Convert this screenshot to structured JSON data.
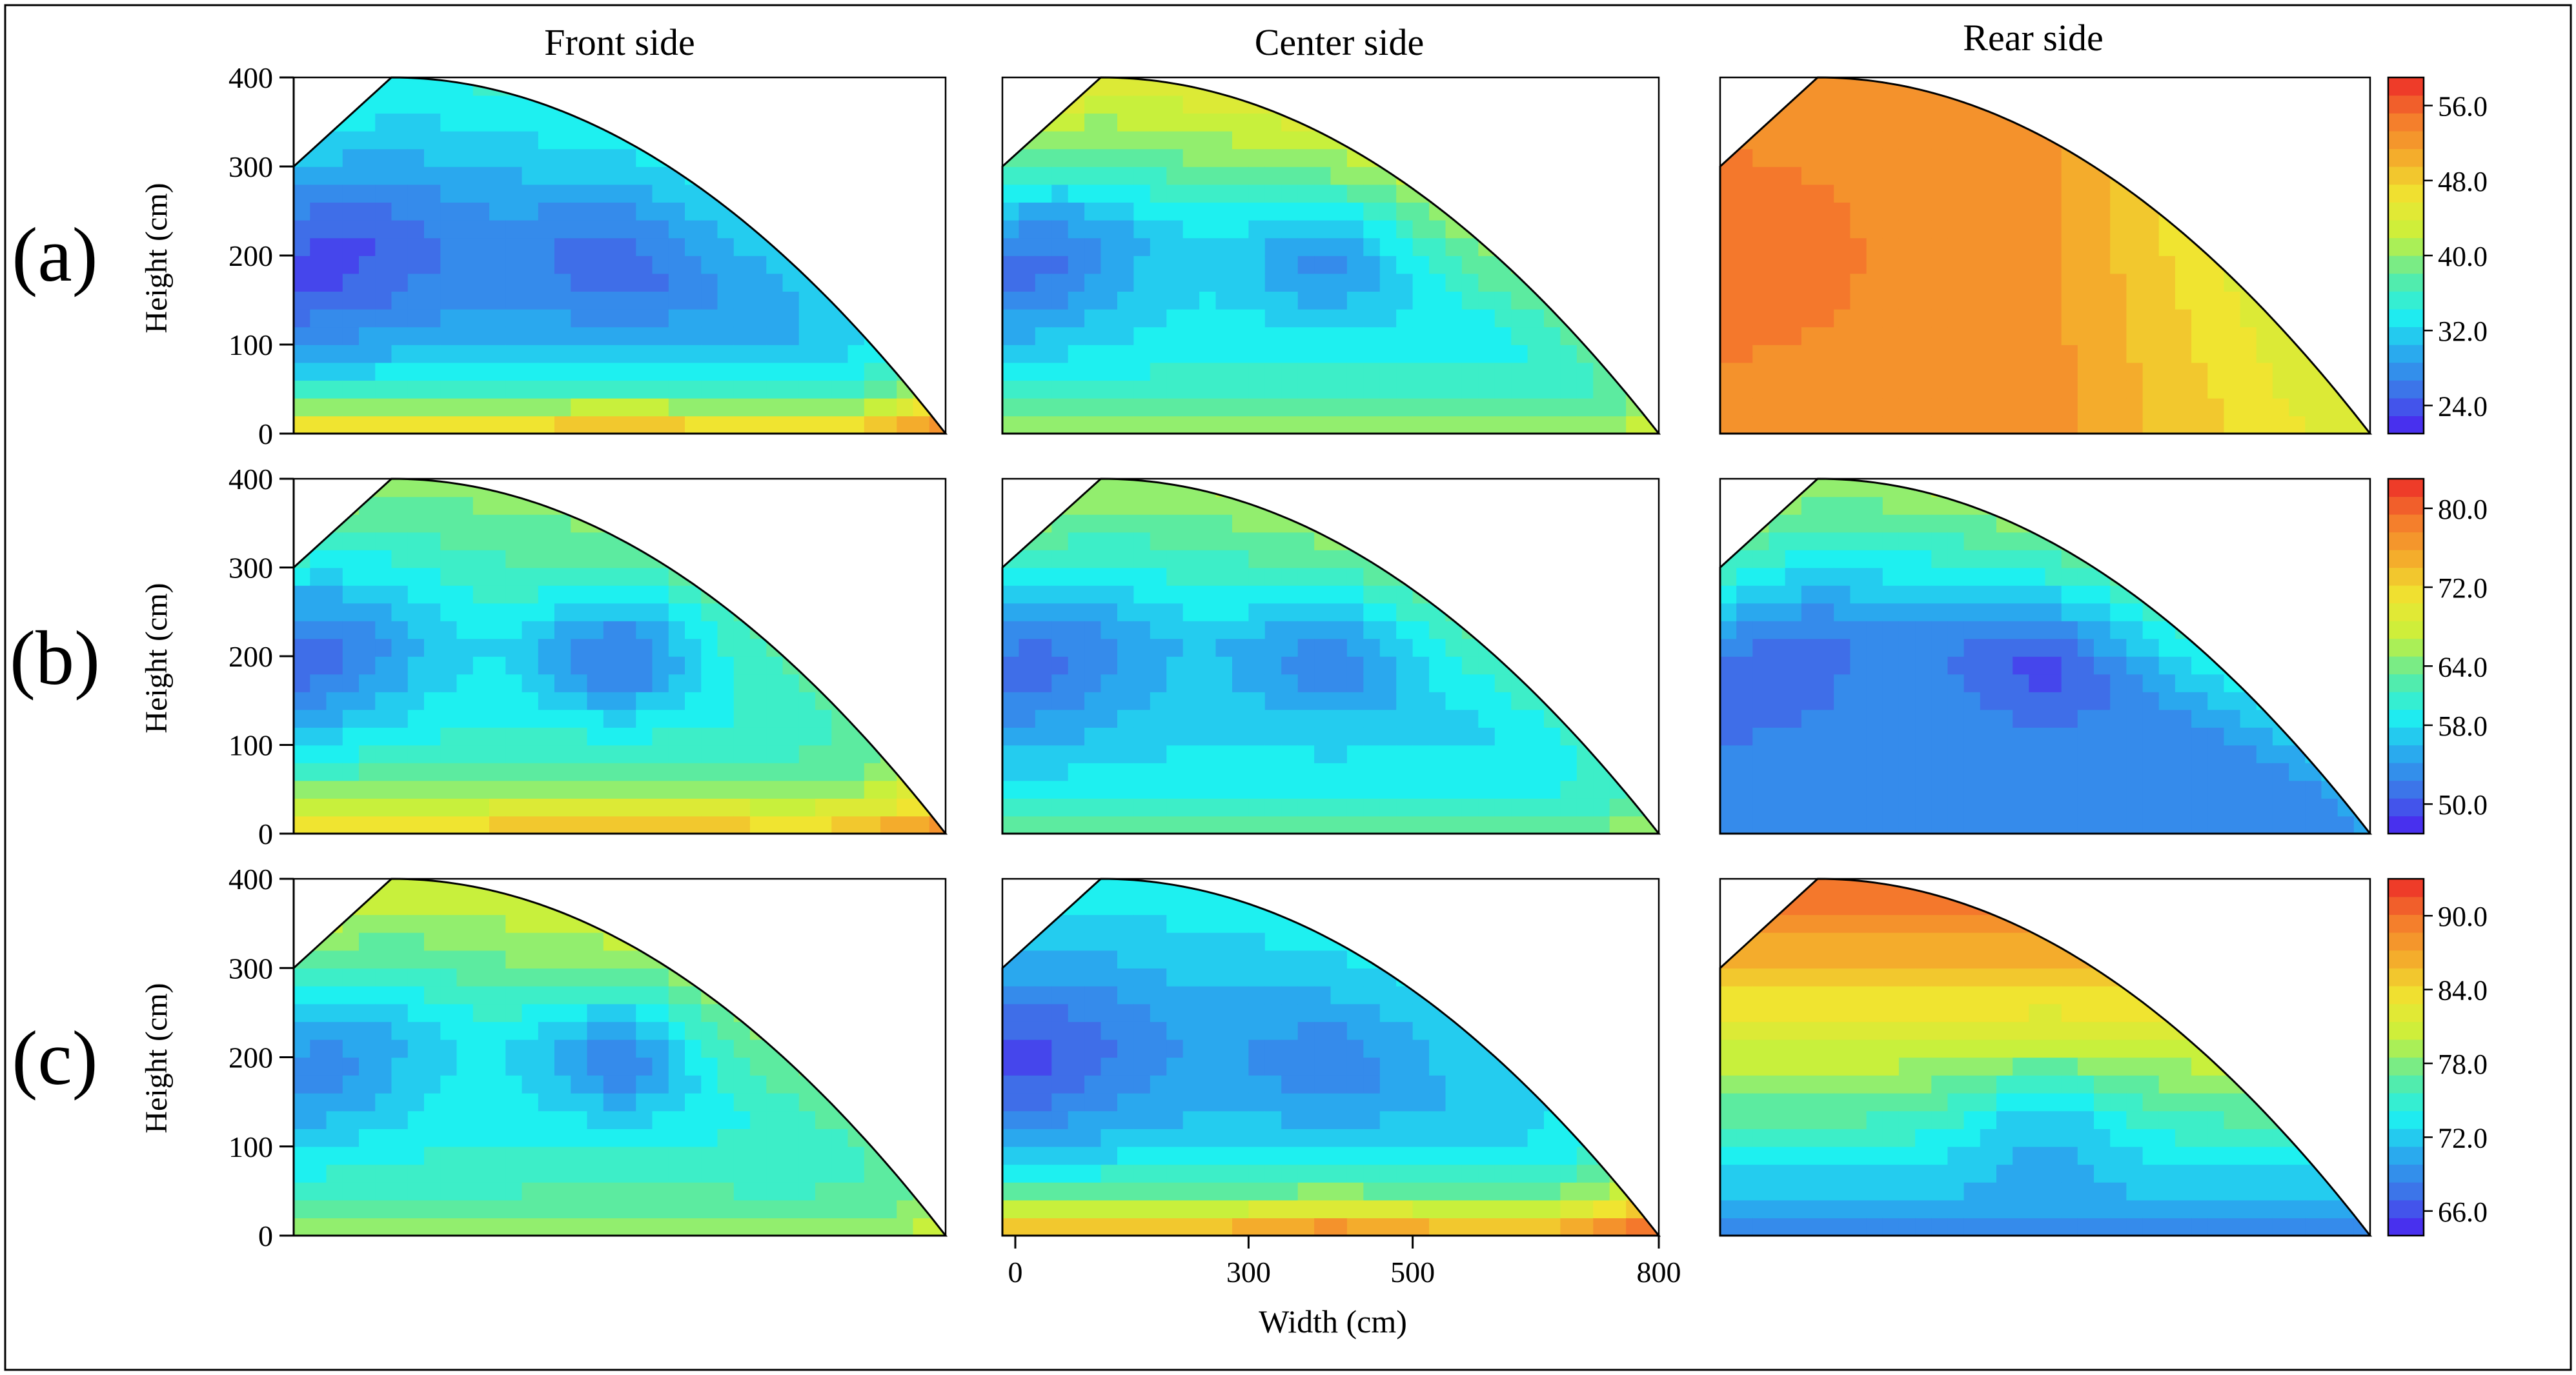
{
  "figure": {
    "column_titles": [
      "Front side",
      "Center side",
      "Rear side"
    ],
    "row_labels": [
      "(a)",
      "(b)",
      "(c)"
    ],
    "ylabel": "Height (cm)",
    "xlabel": "Width (cm)"
  },
  "chart_data": {
    "type": "contour",
    "title": "",
    "xlabel": "Width (cm)",
    "ylabel": "Height (cm)",
    "xlim": [
      0,
      800
    ],
    "ylim": [
      0,
      400
    ],
    "x_ticks": [
      "0",
      "300",
      "500",
      "800"
    ],
    "y_ticks": [
      "0",
      "100",
      "200",
      "300",
      "400"
    ],
    "columns": [
      "Front side",
      "Center side",
      "Rear side"
    ],
    "rows": [
      {
        "label": "(a)",
        "colorbar": {
          "ticks": [
            "24.0",
            "32.0",
            "40.0",
            "48.0",
            "56.0"
          ],
          "min": 21,
          "max": 59
        },
        "panels": [
          {
            "column": "Front side",
            "base": 27,
            "bottom_peak": 53,
            "side_low": 22,
            "center_low": 24,
            "top_rise": 8
          },
          {
            "column": "Center side",
            "base": 33,
            "bottom_peak": 42,
            "side_low": 24,
            "center_low": 27,
            "top_rise": 12
          },
          {
            "column": "Rear side",
            "base": 53,
            "bottom_peak": 53,
            "side_low": 55,
            "center_low": 53,
            "right_gradient": 16
          }
        ]
      },
      {
        "label": "(b)",
        "colorbar": {
          "ticks": [
            "50.0",
            "58.0",
            "64.0",
            "72.0",
            "80.0"
          ],
          "min": 47,
          "max": 83
        },
        "panels": [
          {
            "column": "Front side",
            "base": 59,
            "bottom_peak": 77,
            "side_low": 50,
            "center_low": 51,
            "top_rise": 6
          },
          {
            "column": "Center side",
            "base": 57,
            "bottom_peak": 65,
            "side_low": 50,
            "center_low": 52,
            "top_rise": 9
          },
          {
            "column": "Rear side",
            "base": 53,
            "bottom_peak": 54,
            "side_low": 50,
            "center_low": 49,
            "top_rise": 13
          }
        ]
      },
      {
        "label": "(c)",
        "colorbar": {
          "ticks": [
            "66.0",
            "72.0",
            "78.0",
            "84.0",
            "90.0"
          ],
          "min": 64,
          "max": 93
        },
        "panels": [
          {
            "column": "Front side",
            "base": 74,
            "bottom_peak": 80,
            "side_low": 68,
            "center_low": 68,
            "top_rise": 7
          },
          {
            "column": "Center side",
            "base": 70,
            "bottom_peak": 91,
            "side_low": 65,
            "center_low": 68,
            "top_rise": 4
          },
          {
            "column": "Rear side",
            "base": 79,
            "bottom_peak": 69,
            "side_low": 88,
            "center_low": 84,
            "top_gradient": 22
          }
        ]
      }
    ]
  },
  "colors": {
    "colormap": [
      "#4b1ef0",
      "#3f6ee8",
      "#2aa8ee",
      "#1ef0f0",
      "#5ceba0",
      "#c8f03c",
      "#f0e430",
      "#f4ac2c",
      "#f4782c",
      "#ec2a28"
    ],
    "frame": "#000000",
    "background": "#ffffff"
  }
}
